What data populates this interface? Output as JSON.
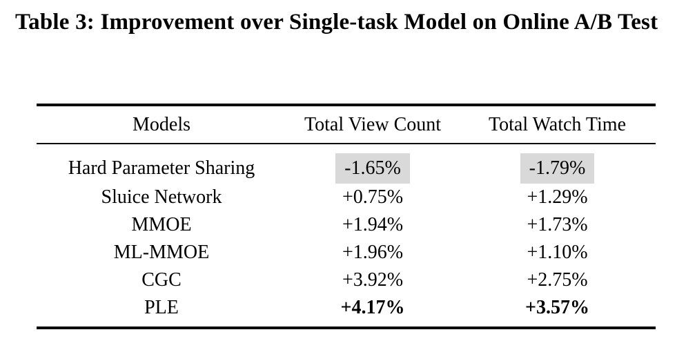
{
  "caption": "Table 3: Improvement over Single-task Model on Online A/B Test",
  "table": {
    "headers": [
      "Models",
      "Total View Count",
      "Total Watch Time"
    ],
    "rows": [
      {
        "model": "Hard Parameter Sharing",
        "view_count": "-1.65%",
        "watch_time": "-1.79%",
        "highlight": true,
        "bold": false
      },
      {
        "model": "Sluice Network",
        "view_count": "+0.75%",
        "watch_time": "+1.29%",
        "highlight": false,
        "bold": false
      },
      {
        "model": "MMOE",
        "view_count": "+1.94%",
        "watch_time": "+1.73%",
        "highlight": false,
        "bold": false
      },
      {
        "model": "ML-MMOE",
        "view_count": "+1.96%",
        "watch_time": "+1.10%",
        "highlight": false,
        "bold": false
      },
      {
        "model": "CGC",
        "view_count": "+3.92%",
        "watch_time": "+2.75%",
        "highlight": false,
        "bold": false
      },
      {
        "model": "PLE",
        "view_count": "+4.17%",
        "watch_time": "+3.57%",
        "highlight": false,
        "bold": true
      }
    ]
  },
  "colors": {
    "highlight_bg": "#d9d9d9",
    "text": "#000000",
    "rule": "#000000",
    "background": "#ffffff"
  },
  "chart_data": {
    "type": "table",
    "title": "Table 3: Improvement over Single-task Model on Online A/B Test",
    "columns": [
      "Models",
      "Total View Count",
      "Total Watch Time"
    ],
    "rows": [
      [
        "Hard Parameter Sharing",
        "-1.65%",
        "-1.79%"
      ],
      [
        "Sluice Network",
        "+0.75%",
        "+1.29%"
      ],
      [
        "MMOE",
        "+1.94%",
        "+1.73%"
      ],
      [
        "ML-MMOE",
        "+1.96%",
        "+1.10%"
      ],
      [
        "CGC",
        "+3.92%",
        "+2.75%"
      ],
      [
        "PLE",
        "+4.17%",
        "+3.57%"
      ]
    ]
  }
}
